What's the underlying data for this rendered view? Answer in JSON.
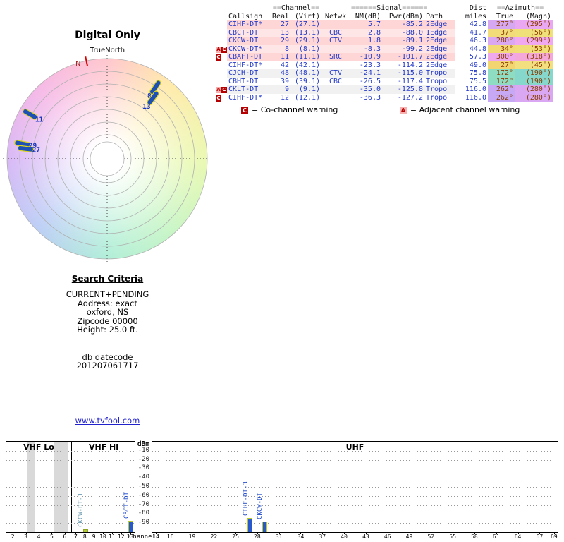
{
  "link": {
    "label": "www.tvfool.com"
  },
  "search": {
    "heading": "Search Criteria",
    "lines": [
      "CURRENT+PENDING",
      "Address: exact",
      "oxford, NS",
      "Zipcode 00000",
      "Height: 25.0 ft."
    ],
    "datecode_label": "db datecode",
    "datecode_value": "201207061717"
  },
  "legend": {
    "co_symbol": "C",
    "co_text": "= Co-channel warning",
    "adj_symbol": "A",
    "adj_text": "= Adjacent channel warning"
  },
  "colors": {
    "data_text": "#2238c8",
    "azimuth_text": "#8a3c00",
    "warning_red": "#b40000",
    "bar_blue": "#2858cc",
    "bar_edge": "#b8cc30",
    "link_blue": "#2222cc"
  },
  "chart_data": [
    {
      "id": "azimuth-radar",
      "type": "scatter",
      "projection": "polar",
      "title": "Digital Only",
      "north_line_label": "TrueNorth",
      "compass_label": "N",
      "points": [
        {
          "label": "8",
          "azimuth_deg": 34,
          "radius_frac": 0.86
        },
        {
          "label": "13",
          "azimuth_deg": 37,
          "radius_frac": 0.76
        },
        {
          "label": "11",
          "azimuth_deg": 300,
          "radius_frac": 0.89
        },
        {
          "label": "29",
          "azimuth_deg": 280,
          "radius_frac": 0.86
        },
        {
          "label": "27",
          "azimuth_deg": 277,
          "radius_frac": 0.82
        }
      ]
    },
    {
      "id": "signal-spectrum",
      "type": "bar",
      "ylabel": "dBm",
      "xlabel": "Channel",
      "yticks": [
        -10,
        -20,
        -30,
        -40,
        -50,
        -60,
        -70,
        -80,
        -90
      ],
      "ylim": [
        0,
        -100
      ],
      "sections": [
        {
          "label": "VHF Lo",
          "first": 2,
          "last": 6,
          "ticks": [
            2,
            3,
            4,
            5,
            6
          ]
        },
        {
          "label": "VHF Hi",
          "first": 7,
          "last": 13,
          "ticks": [
            7,
            8,
            9,
            10,
            11,
            12,
            13
          ]
        },
        {
          "label": "UHF",
          "first": 14,
          "last": 69,
          "ticks": [
            14,
            16,
            19,
            22,
            25,
            28,
            31,
            34,
            37,
            40,
            43,
            46,
            49,
            52,
            55,
            58,
            61,
            64,
            67,
            69
          ]
        }
      ],
      "shaded_bands": [
        {
          "section": 0,
          "from_frac": 0.31,
          "to_frac": 0.45
        },
        {
          "section": 0,
          "from_frac": 0.73,
          "to_frac": 0.96
        }
      ],
      "bars": [
        {
          "label": "CKCW-DT-1",
          "channel": 8,
          "dbm": -99.2,
          "style": "muted"
        },
        {
          "label": "CBCT-DT",
          "channel": 13,
          "dbm": -88.0,
          "style": "normal"
        },
        {
          "label": "CIHF-DT-3",
          "channel": 27,
          "dbm": -85.2,
          "style": "normal"
        },
        {
          "label": "CKCW-DT",
          "channel": 29,
          "dbm": -89.1,
          "style": "normal"
        }
      ]
    },
    {
      "id": "station-table",
      "type": "table",
      "group_headers": {
        "channel": {
          "pre": "==",
          "label": "Channel",
          "post": "=="
        },
        "signal": {
          "pre": "======",
          "label": "Signal",
          "post": "======"
        },
        "dist": {
          "label": "Dist"
        },
        "azimuth": {
          "pre": "==",
          "label": "Azimuth",
          "post": "=="
        }
      },
      "headers": [
        "Callsign",
        "Real",
        "(Virt)",
        "Netwk",
        "NM(dB)",
        "Pwr(dBm)",
        "Path",
        "miles",
        "True",
        "(Magn)"
      ],
      "rows": [
        {
          "warn": [],
          "callsign": "CIHF-DT*",
          "real": "27",
          "virt": "(27.1)",
          "netwk": "",
          "nm": "5.7",
          "pwr": "-85.2",
          "path": "2Edge",
          "miles": "42.8",
          "true_az": "277°",
          "magn_az": "(295°)",
          "row_bg": "#ffd6d6",
          "true_bg": "#d6a8f2",
          "magn_bg": "#eaa8f2"
        },
        {
          "warn": [],
          "callsign": "CBCT-DT",
          "real": "13",
          "virt": "(13.1)",
          "netwk": "CBC",
          "nm": "2.8",
          "pwr": "-88.0",
          "path": "1Edge",
          "miles": "41.7",
          "true_az": "37°",
          "magn_az": "(56°)",
          "row_bg": "#ffe6e6",
          "true_bg": "#f2dc7a",
          "magn_bg": "#f0e07a"
        },
        {
          "warn": [],
          "callsign": "CKCW-DT",
          "real": "29",
          "virt": "(29.1)",
          "netwk": "CTV",
          "nm": "1.8",
          "pwr": "-89.1",
          "path": "2Edge",
          "miles": "46.3",
          "true_az": "280°",
          "magn_az": "(299°)",
          "row_bg": "#ffd6d6",
          "true_bg": "#daa8f2",
          "magn_bg": "#f0a8f0"
        },
        {
          "warn": [
            "A",
            "C"
          ],
          "callsign": "CKCW-DT*",
          "real": "8",
          "virt": "(8.1)",
          "netwk": "",
          "nm": "-8.3",
          "pwr": "-99.2",
          "path": "2Edge",
          "miles": "44.8",
          "true_az": "34°",
          "magn_az": "(53°)",
          "row_bg": "#ffe6e6",
          "true_bg": "#f2da74",
          "magn_bg": "#f0de78"
        },
        {
          "warn": [
            "C"
          ],
          "callsign": "CBAFT-DT",
          "real": "11",
          "virt": "(11.1)",
          "netwk": "SRC",
          "nm": "-10.9",
          "pwr": "-101.7",
          "path": "2Edge",
          "miles": "57.3",
          "true_az": "300°",
          "magn_az": "(318°)",
          "row_bg": "#ffd6d6",
          "true_bg": "#f0a8ec",
          "magn_bg": "#f4a8da"
        },
        {
          "warn": [],
          "callsign": "CIHF-DT*",
          "real": "42",
          "virt": "(42.1)",
          "netwk": "",
          "nm": "-23.3",
          "pwr": "-114.2",
          "path": "2Edge",
          "miles": "49.0",
          "true_az": "27°",
          "magn_az": "(45°)",
          "row_bg": "#ffffff",
          "true_bg": "#f2d470",
          "magn_bg": "#f2e080"
        },
        {
          "warn": [],
          "callsign": "CJCH-DT",
          "real": "48",
          "virt": "(48.1)",
          "netwk": "CTV",
          "nm": "-24.1",
          "pwr": "-115.0",
          "path": "Tropo",
          "miles": "75.8",
          "true_az": "172°",
          "magn_az": "(190°)",
          "row_bg": "#f1f1f1",
          "true_bg": "#8edcc2",
          "magn_bg": "#86d8cc"
        },
        {
          "warn": [],
          "callsign": "CBHT-DT",
          "real": "39",
          "virt": "(39.1)",
          "netwk": "CBC",
          "nm": "-26.5",
          "pwr": "-117.4",
          "path": "Tropo",
          "miles": "75.5",
          "true_az": "172°",
          "magn_az": "(190°)",
          "row_bg": "#ffffff",
          "true_bg": "#8edcc2",
          "magn_bg": "#86d8cc"
        },
        {
          "warn": [
            "A",
            "C"
          ],
          "callsign": "CKLT-DT",
          "real": "9",
          "virt": "(9.1)",
          "netwk": "",
          "nm": "-35.0",
          "pwr": "-125.8",
          "path": "Tropo",
          "miles": "116.0",
          "true_az": "262°",
          "magn_az": "(280°)",
          "row_bg": "#f1f1f1",
          "true_bg": "#c6a8f4",
          "magn_bg": "#daa8f2"
        },
        {
          "warn": [
            "C"
          ],
          "callsign": "CIHF-DT*",
          "real": "12",
          "virt": "(12.1)",
          "netwk": "",
          "nm": "-36.3",
          "pwr": "-127.2",
          "path": "Tropo",
          "miles": "116.0",
          "true_az": "262°",
          "magn_az": "(280°)",
          "row_bg": "#ffffff",
          "true_bg": "#c6a8f4",
          "magn_bg": "#daa8f2"
        }
      ]
    }
  ]
}
